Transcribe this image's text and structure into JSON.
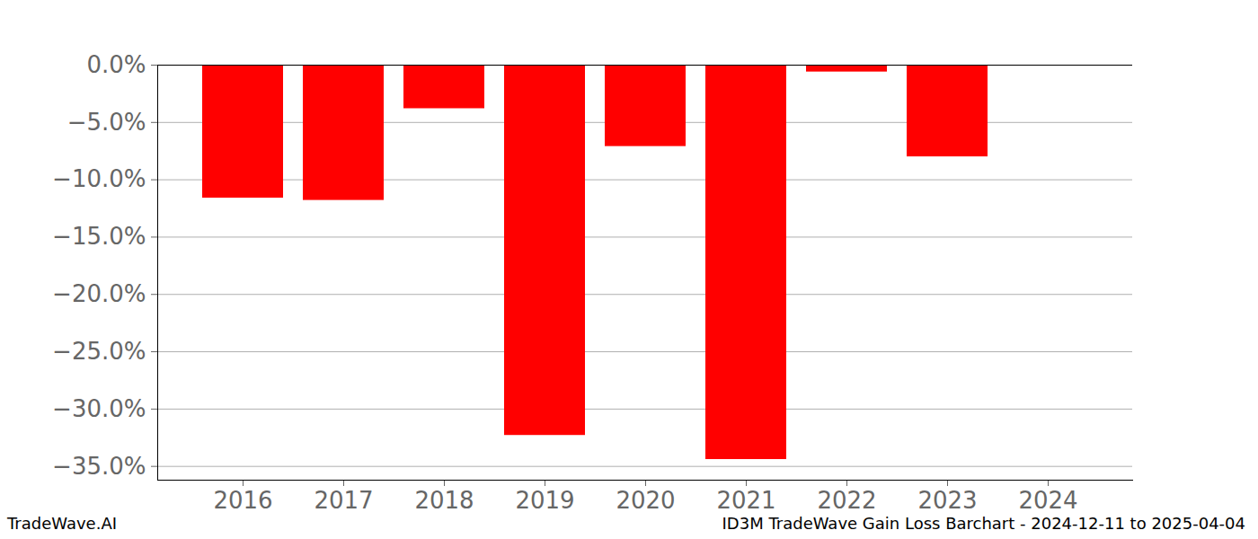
{
  "chart_data": {
    "type": "bar",
    "title": "ID3M TradeWave Gain Loss Barchart - 2024-12-11 to 2025-04-04",
    "caption": "TradeWave.AI",
    "categories": [
      "2016",
      "2017",
      "2018",
      "2019",
      "2020",
      "2021",
      "2022",
      "2023",
      "2024"
    ],
    "values": [
      -11.6,
      -11.8,
      -3.8,
      -32.3,
      -7.1,
      -34.4,
      -0.6,
      -8.0,
      null
    ],
    "color": "#ff0000",
    "ylim": [
      -36.2,
      0
    ],
    "yticks": [
      {
        "value": 0,
        "label": "0.0%"
      },
      {
        "value": -5,
        "label": "−5.0%"
      },
      {
        "value": -10,
        "label": "−10.0%"
      },
      {
        "value": -15,
        "label": "−15.0%"
      },
      {
        "value": -20,
        "label": "−20.0%"
      },
      {
        "value": -25,
        "label": "−25.0%"
      },
      {
        "value": -30,
        "label": "−30.0%"
      },
      {
        "value": -35,
        "label": "−35.0%"
      }
    ],
    "grid": true
  }
}
